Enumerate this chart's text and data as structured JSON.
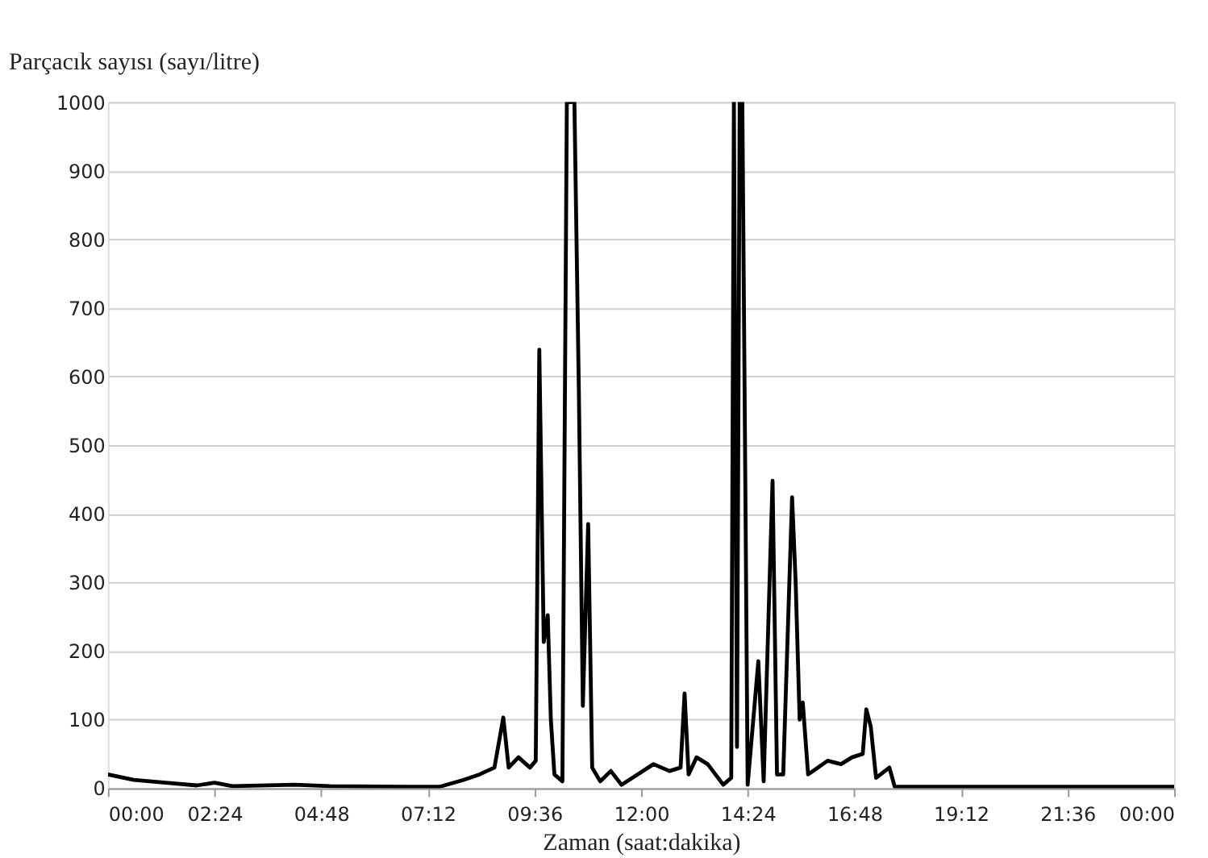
{
  "chart_data": {
    "type": "line",
    "xlabel": "Zaman (saat:dakika)",
    "ylabel": "Parçacık sayısı (sayı/litre)",
    "xlim": [
      0,
      24
    ],
    "xticks": [
      {
        "value": 0,
        "label": "00:00"
      },
      {
        "value": 2.4,
        "label": "02:24"
      },
      {
        "value": 4.8,
        "label": "04:48"
      },
      {
        "value": 7.2,
        "label": "07:12"
      },
      {
        "value": 9.6,
        "label": "09:36"
      },
      {
        "value": 12,
        "label": "12:00"
      },
      {
        "value": 14.4,
        "label": "14:24"
      },
      {
        "value": 16.8,
        "label": "16:48"
      },
      {
        "value": 19.2,
        "label": "19:12"
      },
      {
        "value": 21.6,
        "label": "21:36"
      },
      {
        "value": 24,
        "label": "00:00"
      }
    ],
    "ylim": [
      0,
      1000
    ],
    "yticks": [
      0,
      100,
      200,
      300,
      400,
      500,
      600,
      700,
      800,
      900,
      1000
    ],
    "grid": "y",
    "line_style": "solid",
    "series": [
      {
        "color": "#000000",
        "x": [
          0,
          0.58,
          1.3,
          2.0,
          2.4,
          2.8,
          4.2,
          5.0,
          6.7,
          7.46,
          8.0,
          8.36,
          8.7,
          8.9,
          9.02,
          9.24,
          9.5,
          9.63,
          9.71,
          9.81,
          9.9,
          9.97,
          10.05,
          10.23,
          10.33,
          10.5,
          10.6,
          10.69,
          10.81,
          10.9,
          11.08,
          11.32,
          11.56,
          11.92,
          12.28,
          12.64,
          12.89,
          12.98,
          13.07,
          13.25,
          13.5,
          13.85,
          14.03,
          14.09,
          14.16,
          14.22,
          14.28,
          14.4,
          14.64,
          14.76,
          14.96,
          15.06,
          15.2,
          15.4,
          15.48,
          15.57,
          15.64,
          15.76,
          16.2,
          16.5,
          16.75,
          16.99,
          17.07,
          17.17,
          17.29,
          17.59,
          17.71,
          20,
          24
        ],
        "values": [
          20,
          12,
          8,
          4,
          8,
          3,
          5,
          3,
          2,
          2,
          12,
          20,
          30,
          103,
          30,
          45,
          30,
          40,
          639,
          213,
          252,
          100,
          20,
          10,
          1000,
          1000,
          580,
          120,
          385,
          30,
          10,
          25,
          5,
          20,
          35,
          25,
          30,
          138,
          20,
          45,
          35,
          5,
          15,
          1000,
          60,
          1000,
          1000,
          5,
          185,
          10,
          448,
          20,
          20,
          424,
          300,
          100,
          125,
          20,
          40,
          35,
          45,
          50,
          115,
          90,
          15,
          30,
          2,
          2,
          2
        ]
      }
    ]
  }
}
